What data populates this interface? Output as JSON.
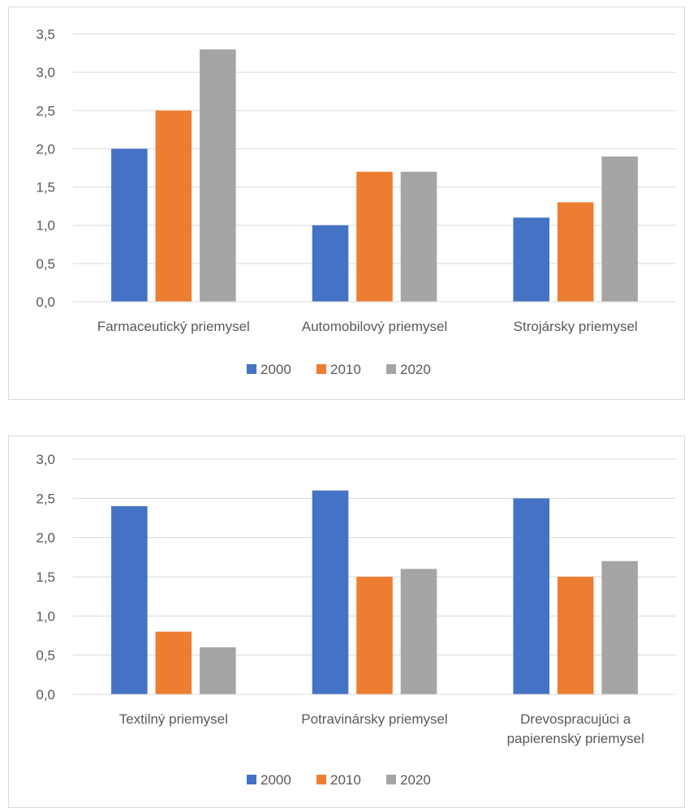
{
  "chart_data": [
    {
      "type": "bar",
      "categories": [
        [
          "Farmaceutický priemysel"
        ],
        [
          "Automobilový priemysel"
        ],
        [
          "Strojársky priemysel"
        ]
      ],
      "series": [
        {
          "name": "2000",
          "values": [
            2.0,
            1.0,
            1.1
          ],
          "color": "#4472c4"
        },
        {
          "name": "2010",
          "values": [
            2.5,
            1.7,
            1.3
          ],
          "color": "#ed7d31"
        },
        {
          "name": "2020",
          "values": [
            3.3,
            1.7,
            1.9
          ],
          "color": "#a5a5a5"
        }
      ],
      "yticks": [
        "0,0",
        "0,5",
        "1,0",
        "1,5",
        "2,0",
        "2,5",
        "3,0",
        "3,5"
      ],
      "ylim": [
        0,
        3.5
      ],
      "grid": true,
      "legend": "bottom"
    },
    {
      "type": "bar",
      "categories": [
        [
          "Textilný priemysel"
        ],
        [
          "Potravinársky priemysel"
        ],
        [
          "Drevospracujúci a",
          "papierenský priemysel"
        ]
      ],
      "series": [
        {
          "name": "2000",
          "values": [
            2.4,
            2.6,
            2.5
          ],
          "color": "#4472c4"
        },
        {
          "name": "2010",
          "values": [
            0.8,
            1.5,
            1.5
          ],
          "color": "#ed7d31"
        },
        {
          "name": "2020",
          "values": [
            0.6,
            1.6,
            1.7
          ],
          "color": "#a5a5a5"
        }
      ],
      "yticks": [
        "0,0",
        "0,5",
        "1,0",
        "1,5",
        "2,0",
        "2,5",
        "3,0"
      ],
      "ylim": [
        0,
        3.0
      ],
      "grid": true,
      "legend": "bottom"
    }
  ]
}
